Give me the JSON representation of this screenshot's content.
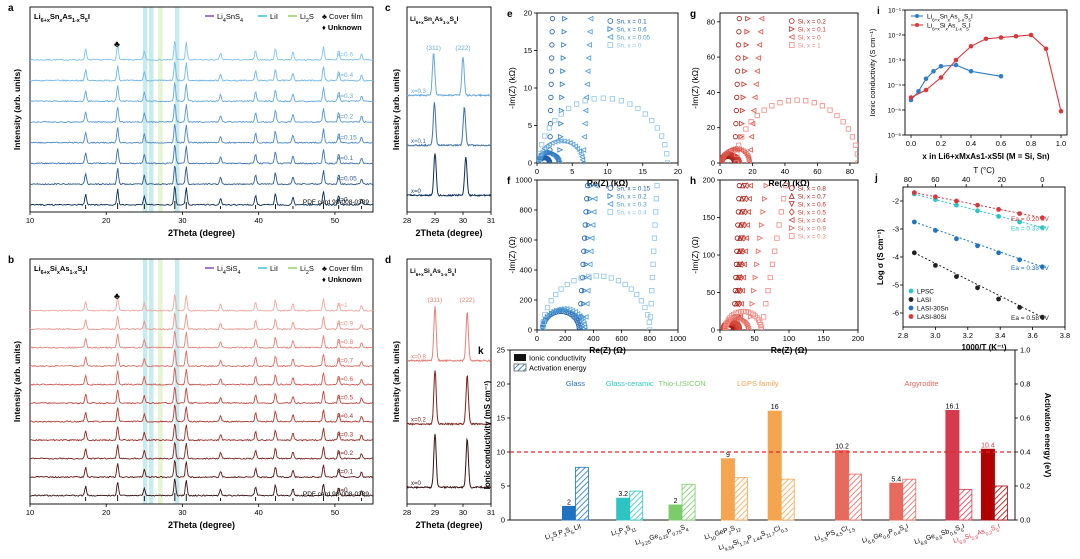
{
  "colors": {
    "blue_dark": "#0b2f57",
    "blue_light": "#7fc4ef",
    "red_dark": "#3b1212",
    "red_light": "#f0a8a0",
    "purple": "#7e3fa8",
    "cyan": "#23c0d6",
    "green": "#8fcf5a",
    "k_dark_red": "#b00000",
    "k_red": "#e8695e",
    "k_orange": "#f5a550",
    "k_green": "#7ccc6b",
    "k_teal": "#2ec4c4",
    "k_blue": "#1f73c0",
    "pink_text": "#e0424f"
  },
  "chart_data": [
    {
      "panel": "a",
      "type": "line",
      "title": "Li6+xSnxAs1-xS5I",
      "xlabel": "2Theta (degree)",
      "ylabel": "Intensity (arb. units)",
      "xlim": [
        10,
        55
      ],
      "xticks": [
        "10",
        "20",
        "30",
        "40",
        "50"
      ],
      "legend": [
        "Li4SnS4",
        "LiI",
        "Li2S",
        "♣ Cover film",
        "♦ Unknown"
      ],
      "series": [
        {
          "name": "x=0.6",
          "color": "#7fc4ef"
        },
        {
          "name": "x=0.4",
          "color": "#72b6e6"
        },
        {
          "name": "x=0.3",
          "color": "#66a9dc"
        },
        {
          "name": "x=0.2",
          "color": "#5a99d0"
        },
        {
          "name": "x=0.15",
          "color": "#4d88c2"
        },
        {
          "name": "x=0.1",
          "color": "#3f74ad"
        },
        {
          "name": "x=0.05",
          "color": "#2c5b90"
        },
        {
          "name": "x=0",
          "color": "#0b2f57"
        }
      ],
      "reference": "PDF card 98-008-0389",
      "peaks": [
        17.3,
        21.5,
        25.0,
        29.0,
        30.5,
        35.0,
        39.6,
        42.2,
        44.5,
        48.5,
        50.5,
        53.5
      ]
    },
    {
      "panel": "b",
      "type": "line",
      "title": "Li6+xSixAs1-xS5I",
      "xlabel": "2Theta (degree)",
      "ylabel": "Intensity (arb. units)",
      "xlim": [
        10,
        55
      ],
      "xticks": [
        "10",
        "20",
        "30",
        "40",
        "50"
      ],
      "legend": [
        "Li4SiS4",
        "LiI",
        "Li2S",
        "♣ Cover film",
        "♦ Unknown"
      ],
      "series": [
        {
          "name": "x=1",
          "color": "#f0a8a0"
        },
        {
          "name": "x=0.9",
          "color": "#ea968d"
        },
        {
          "name": "x=0.8",
          "color": "#e2827a"
        },
        {
          "name": "x=0.7",
          "color": "#d86e66"
        },
        {
          "name": "x=0.6",
          "color": "#cd5b53"
        },
        {
          "name": "x=0.5",
          "color": "#bf4840"
        },
        {
          "name": "x=0.4",
          "color": "#ad3a33"
        },
        {
          "name": "x=0.3",
          "color": "#962e28"
        },
        {
          "name": "x=0.2",
          "color": "#7c231e"
        },
        {
          "name": "x=0.1",
          "color": "#5e1915"
        },
        {
          "name": "x=0",
          "color": "#3b1212"
        }
      ],
      "reference": "PDF card 98-008-0389",
      "peaks": [
        17.3,
        21.5,
        25.0,
        29.0,
        30.5,
        35.0,
        39.6,
        42.2,
        44.5,
        48.5,
        50.5,
        53.5
      ]
    },
    {
      "panel": "c",
      "type": "line",
      "title": "Li6+xSnxAs1-xS5I",
      "xlabel": "2Theta (degree)",
      "ylabel": "Intensity (arb. units)",
      "xlim": [
        28,
        31
      ],
      "xticks": [
        "28",
        "29",
        "30",
        "31"
      ],
      "annotations": [
        "(311)",
        "(222)"
      ],
      "series": [
        {
          "name": "x=0.3",
          "color": "#66a9dc",
          "peaks": [
            28.95,
            30.0
          ]
        },
        {
          "name": "x=0.1",
          "color": "#3f74ad",
          "peaks": [
            28.98,
            30.05
          ]
        },
        {
          "name": "x=0",
          "color": "#0b2f57",
          "peaks": [
            29.0,
            30.1
          ]
        }
      ]
    },
    {
      "panel": "d",
      "type": "line",
      "title": "Li6+xSixAs1-xS5I",
      "xlabel": "2Theta (degree)",
      "ylabel": "Intensity (arb. units)",
      "xlim": [
        28,
        31
      ],
      "xticks": [
        "28",
        "29",
        "30",
        "31"
      ],
      "annotations": [
        "(311)",
        "(222)"
      ],
      "series": [
        {
          "name": "x=0.8",
          "color": "#e2827a",
          "peaks": [
            29.0,
            30.15
          ]
        },
        {
          "name": "x=0.2",
          "color": "#7c231e",
          "peaks": [
            29.0,
            30.15
          ]
        },
        {
          "name": "x=0",
          "color": "#3b1212",
          "peaks": [
            29.0,
            30.15
          ]
        }
      ]
    },
    {
      "panel": "e",
      "type": "scatter",
      "xlabel": "Re(Z) (kΩ)",
      "ylabel": "-Im(Z) (kΩ)",
      "xlim": [
        0,
        20
      ],
      "ylim": [
        0,
        20
      ],
      "xticks": [
        "0",
        "5",
        "10",
        "15",
        "20"
      ],
      "yticks": [
        "0",
        "5",
        "10",
        "15",
        "20"
      ],
      "series": [
        {
          "name": "Sn, x = 0.1",
          "marker": "circle",
          "color": "#1f5ea8",
          "semicircle": [
            0.3,
            1.8
          ],
          "tail": 3
        },
        {
          "name": "Sn, x = 0.6",
          "marker": "tri-right",
          "color": "#2f7dc4",
          "semicircle": [
            0.3,
            3.2
          ],
          "tail": 5.5
        },
        {
          "name": "Sn, x = 0.05",
          "marker": "tri-left",
          "color": "#4f9ad6",
          "semicircle": [
            0.3,
            6.5
          ],
          "tail": 10
        },
        {
          "name": "Sn, x = 0",
          "marker": "square",
          "color": "#8fc4ea",
          "semicircle": [
            0.3,
            18.5
          ],
          "tail": 0
        }
      ]
    },
    {
      "panel": "f",
      "type": "scatter",
      "xlabel": "Re(Z) (Ω)",
      "ylabel": "-Im(Z) (Ω)",
      "xlim": [
        0,
        1000
      ],
      "ylim": [
        0,
        1000
      ],
      "xticks": [
        "0",
        "200",
        "400",
        "600",
        "800",
        "1000"
      ],
      "yticks": [
        "0",
        "200",
        "400",
        "600",
        "800",
        "1000"
      ],
      "series": [
        {
          "name": "Sn, x = 0.15",
          "marker": "circle",
          "color": "#1f5ea8",
          "semicircle": [
            40,
            300
          ],
          "tail": 480
        },
        {
          "name": "Sn, x = 0.2",
          "marker": "tri-right",
          "color": "#2f7dc4",
          "semicircle": [
            40,
            320
          ],
          "tail": 520
        },
        {
          "name": "Sn, x = 0.3",
          "marker": "tri-left",
          "color": "#4f9ad6",
          "semicircle": [
            40,
            340
          ],
          "tail": 580
        },
        {
          "name": "Sn, x = 0.4",
          "marker": "square",
          "color": "#8fc4ea",
          "semicircle": [
            40,
            800
          ],
          "tail": 960
        }
      ]
    },
    {
      "panel": "g",
      "type": "scatter",
      "xlabel": "Re(Z) (kΩ)",
      "ylabel": "-Im(Z) (kΩ)",
      "xlim": [
        0,
        85
      ],
      "ylim": [
        0,
        85
      ],
      "xticks": [
        "0",
        "20",
        "40",
        "60",
        "80"
      ],
      "yticks": [
        "0",
        "20",
        "40",
        "60",
        "80"
      ],
      "series": [
        {
          "name": "Si, x = 0.2",
          "marker": "circle",
          "color": "#a51f16",
          "semicircle": [
            1,
            9
          ],
          "tail": 18
        },
        {
          "name": "Si, x = 0.1",
          "marker": "tri-right",
          "color": "#c8392c",
          "semicircle": [
            1,
            12
          ],
          "tail": 28
        },
        {
          "name": "Si, x = 0",
          "marker": "tri-left",
          "color": "#de5a4e",
          "semicircle": [
            1,
            18
          ],
          "tail": 42
        },
        {
          "name": "Si, x = 1",
          "marker": "square",
          "color": "#f08a80",
          "semicircle": [
            10,
            85
          ],
          "tail": 0
        }
      ]
    },
    {
      "panel": "h",
      "type": "scatter",
      "xlabel": "Re(Z) (Ω)",
      "ylabel": "-Im(Z) (Ω)",
      "xlim": [
        0,
        200
      ],
      "ylim": [
        0,
        200
      ],
      "xticks": [
        "0",
        "50",
        "100",
        "150",
        "200"
      ],
      "yticks": [
        "0",
        "50",
        "100",
        "150",
        "200"
      ],
      "series": [
        {
          "name": "Si, x = 0.8",
          "marker": "circle",
          "color": "#8b1a12",
          "semicircle": [
            5,
            20
          ],
          "tail": 45
        },
        {
          "name": "Si, x = 0.7",
          "marker": "tri-up",
          "color": "#a51f16",
          "semicircle": [
            5,
            22
          ],
          "tail": 55
        },
        {
          "name": "Si, x = 0.6",
          "marker": "tri-down",
          "color": "#bb2d22",
          "semicircle": [
            5,
            24
          ],
          "tail": 60
        },
        {
          "name": "Si, x = 0.5",
          "marker": "diamond",
          "color": "#c8392c",
          "semicircle": [
            5,
            26
          ],
          "tail": 68
        },
        {
          "name": "Si, x = 0.4",
          "marker": "tri-left",
          "color": "#d64a3e",
          "semicircle": [
            5,
            28
          ],
          "tail": 78
        },
        {
          "name": "Si, x = 0.9",
          "marker": "tri-right",
          "color": "#e56a5f",
          "semicircle": [
            8,
            42
          ],
          "tail": 120
        },
        {
          "name": "Si, x = 0.3",
          "marker": "square",
          "color": "#f08a80",
          "semicircle": [
            8,
            60
          ],
          "tail": 170
        }
      ]
    },
    {
      "panel": "i",
      "type": "line",
      "xlabel": "x  in  Li6+xMxAs1-xS5I (M = Si, Sn)",
      "ylabel": "Ionic conductivity (S cm⁻¹)",
      "xlim": [
        0,
        1.0
      ],
      "ylim_log10": [
        -6,
        -1
      ],
      "xticks": [
        "0.0",
        "0.2",
        "0.4",
        "0.6",
        "0.8",
        "1.0"
      ],
      "yticks": [
        "10⁻⁶",
        "10⁻⁵",
        "10⁻⁴",
        "10⁻³",
        "10⁻²",
        "10⁻¹"
      ],
      "series": [
        {
          "name": "Li6+xSnxAs1-xS5I",
          "color": "#2f7dc4",
          "x": [
            0,
            0.05,
            0.1,
            0.15,
            0.2,
            0.3,
            0.4,
            0.6
          ],
          "log10_y": [
            -4.6,
            -4.25,
            -3.75,
            -3.45,
            -3.25,
            -3.2,
            -3.45,
            -3.65
          ]
        },
        {
          "name": "Li6+xSixAs1-xS5I",
          "color": "#d6383c",
          "x": [
            0,
            0.1,
            0.2,
            0.3,
            0.4,
            0.5,
            0.6,
            0.7,
            0.8,
            0.9,
            1.0
          ],
          "log10_y": [
            -4.5,
            -4.2,
            -3.7,
            -3.0,
            -2.45,
            -2.15,
            -2.1,
            -2.05,
            -2.0,
            -2.55,
            -5.05
          ]
        }
      ]
    },
    {
      "panel": "j",
      "type": "scatter",
      "xlabel": "1000/T  (K⁻¹)",
      "ylabel": "Log σ (S cm⁻¹)",
      "top_xlabel": "T (°C)",
      "top_xticks": [
        "80",
        "60",
        "40",
        "20",
        "0"
      ],
      "xlim": [
        2.8,
        3.8
      ],
      "ylim": [
        -6.5,
        -1.5
      ],
      "xticks": [
        "2.8",
        "3.0",
        "3.2",
        "3.4",
        "3.6",
        "3.8"
      ],
      "yticks": [
        "-6",
        "-5",
        "-4",
        "-3",
        "-2"
      ],
      "series": [
        {
          "name": "LPSC",
          "color": "#2ec4c4",
          "x": [
            2.87,
            3.0,
            3.13,
            3.26,
            3.39,
            3.52,
            3.66
          ],
          "y": [
            -1.75,
            -1.95,
            -2.15,
            -2.35,
            -2.55,
            -2.75,
            -2.95
          ],
          "ea": "Ea = 0.33 eV"
        },
        {
          "name": "LASI",
          "color": "#222222",
          "x": [
            2.87,
            3.0,
            3.13,
            3.26,
            3.39,
            3.52,
            3.66
          ],
          "y": [
            -3.85,
            -4.3,
            -4.7,
            -5.1,
            -5.5,
            -5.8,
            -6.15
          ],
          "ea": "Ea = 0.58 eV"
        },
        {
          "name": "LASI-30Sn",
          "color": "#1f73c0",
          "x": [
            2.87,
            3.0,
            3.13,
            3.26,
            3.39,
            3.52,
            3.66
          ],
          "y": [
            -2.75,
            -3.05,
            -3.35,
            -3.6,
            -3.85,
            -4.1,
            -4.35
          ],
          "ea": "Ea = 0.38 eV"
        },
        {
          "name": "LASI-80Si",
          "color": "#d6383c",
          "x": [
            2.87,
            3.0,
            3.13,
            3.26,
            3.39,
            3.52,
            3.66
          ],
          "y": [
            -1.7,
            -1.85,
            -2.0,
            -2.15,
            -2.3,
            -2.45,
            -2.6
          ],
          "ea": "Ea = 0.20 eV"
        }
      ]
    },
    {
      "panel": "k",
      "type": "bar",
      "ylabel_left": "Ionic conductivity (mS cm⁻¹)",
      "ylabel_right": "Activation energy (eV)",
      "ylim_left": [
        0,
        25
      ],
      "ylim_right": [
        0,
        1.0
      ],
      "yticks_left": [
        "0",
        "5",
        "10",
        "15",
        "20",
        "25"
      ],
      "yticks_right": [
        "0.0",
        "0.2",
        "0.4",
        "0.6",
        "0.8",
        "1.0"
      ],
      "legend": [
        "Ionic conductivity",
        "Activation energy"
      ],
      "reference_line": 10,
      "groups": [
        {
          "label": "Glass",
          "color": "#1f73c0"
        },
        {
          "label": "Glass-ceramic",
          "color": "#2ec4c4"
        },
        {
          "label": "Thio-LISICON",
          "color": "#7ccc6b"
        },
        {
          "label": "LGPS family",
          "color": "#f5a550"
        },
        {
          "label": "Argyrodite",
          "color": "#e8695e"
        }
      ],
      "categories": [
        {
          "name": "Li2S-P2S5-LiI",
          "color": "#1f73c0",
          "cond": 2,
          "cond_label": "2",
          "ea": 0.31
        },
        {
          "name": "Li7P3S11",
          "color": "#2ec4c4",
          "cond": 3.2,
          "cond_label": "3.2",
          "ea": 0.17
        },
        {
          "name": "Li3.25Ge0.25P0.75S4",
          "color": "#7ccc6b",
          "cond": 2.2,
          "cond_label": "2",
          "ea": 0.21
        },
        {
          "name": "Li10GeP2S12",
          "color": "#f5a550",
          "cond": 9,
          "cond_label": "9",
          "ea": 0.25
        },
        {
          "name": "Li9.54Si1.74P1.44S11.7Cl0.3",
          "color": "#f5a550",
          "cond": 16,
          "cond_label": "16",
          "ea": 0.24
        },
        {
          "name": "Li5.5PS4.5Cl1.5",
          "color": "#e8695e",
          "cond": 10.2,
          "cond_label": "10.2",
          "ea": 0.27
        },
        {
          "name": "Li6.6Ge0.6P0.4S5I",
          "color": "#e8695e",
          "cond": 5.4,
          "cond_label": "5.4",
          "ea": 0.24
        },
        {
          "name": "Li6.6Ge0.5Sb0.5S5I",
          "color": "#d63a4d",
          "cond": 16.1,
          "cond_label": "16.1",
          "ea": 0.18
        },
        {
          "name": "Li6.8Si0.8As0.2S5I",
          "color": "#b00000",
          "cond": 10.4,
          "cond_label": "10.4",
          "ea": 0.2
        }
      ]
    }
  ],
  "labels": {
    "a": {
      "letter": "a",
      "title_base": "Li",
      "legend1": "Li4SnS4",
      "legend2": "LiI",
      "legend3": "Li2S",
      "cover": "♣ Cover film",
      "unknown": "♦ Unknown",
      "pdf": "PDF card 98-008-0389"
    },
    "b": {
      "letter": "b",
      "legend1": "Li4SiS4",
      "legend2": "LiI",
      "legend3": "Li2S",
      "cover": "♣ Cover film",
      "unknown": "♦ Unknown",
      "pdf": "PDF card 98-008-0389"
    },
    "c": {
      "letter": "c"
    },
    "d": {
      "letter": "d"
    },
    "e": {
      "letter": "e"
    },
    "f": {
      "letter": "f"
    },
    "g": {
      "letter": "g"
    },
    "h": {
      "letter": "h"
    },
    "i": {
      "letter": "i"
    },
    "j": {
      "letter": "j"
    },
    "k": {
      "letter": "k"
    }
  }
}
